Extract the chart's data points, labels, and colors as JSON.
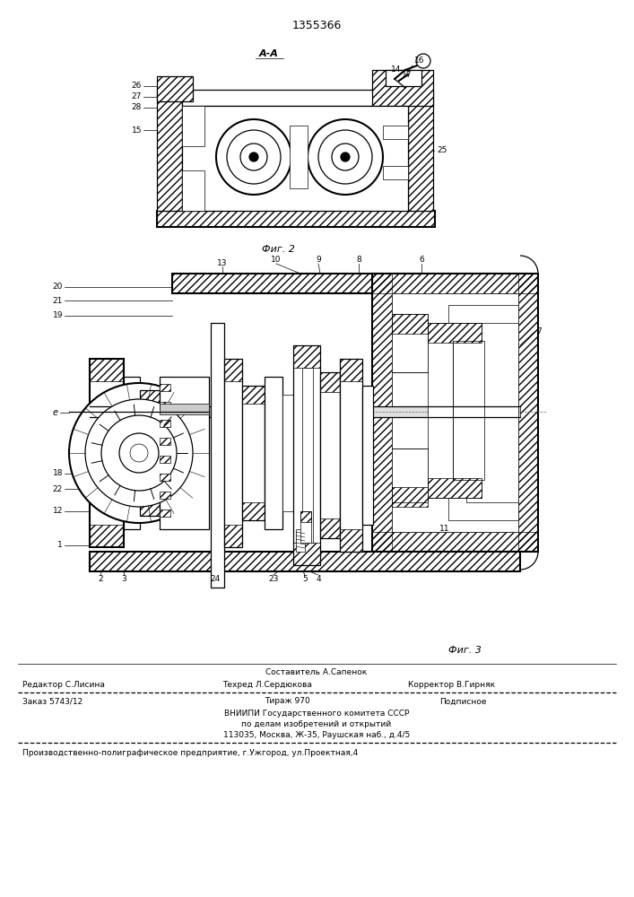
{
  "patent_number": "1355366",
  "fig2_label": "Фиг. 2",
  "fig3_label": "Фиг. 3",
  "section_label": "А-А",
  "bg_color": "#ffffff",
  "line_color": "#000000",
  "editor_line": "Редактор С.Лисина",
  "compiler_line": "Составитель А.Сапенок",
  "tech_line": "Техред Л.Сердюкова",
  "corrector_line": "Корректор В.Гирняк",
  "order_line": "Заказ 5743/12",
  "edition_line": "Тираж 970",
  "subscription_line": "Подписное",
  "vniip_line1": "ВНИИПИ Государственного комитета СССР",
  "vniip_line2": "по делам изобретений и открытий",
  "vniip_line3": "113035, Москва, Ж-35, Раушская наб., д.4/5",
  "production_line": "Производственно-полиграфическое предприятие, г.Ужгород, ул.Проектная,4"
}
